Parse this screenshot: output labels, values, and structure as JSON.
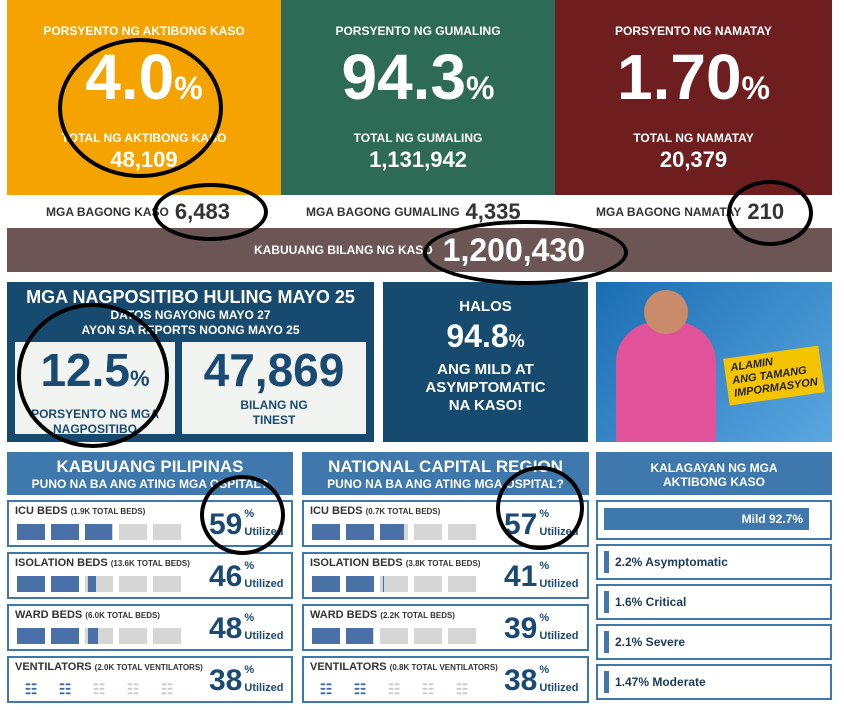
{
  "top": [
    {
      "label": "PORSYENTO NG AKTIBONG KASO",
      "value": "4.0",
      "unit": "%",
      "sub": "TOTAL NG AKTIBONG KASO",
      "count": "48,109",
      "color": "#f5a300"
    },
    {
      "label": "PORSYENTO NG GUMALING",
      "value": "94.3",
      "unit": "%",
      "sub": "TOTAL NG GUMALING",
      "count": "1,131,942",
      "color": "#2e6b57"
    },
    {
      "label": "PORSYENTO NG NAMATAY",
      "value": "1.70",
      "unit": "%",
      "sub": "TOTAL NG NAMATAY",
      "count": "20,379",
      "color": "#6e1e1e"
    }
  ],
  "new": [
    {
      "label": "MGA BAGONG KASO",
      "value": "6,483"
    },
    {
      "label": "MGA BAGONG GUMALING",
      "value": "4,335"
    },
    {
      "label": "MGA BAGONG NAMATAY",
      "value": "210"
    }
  ],
  "total": {
    "label": "KABUUANG BILANG NG KASO",
    "value": "1,200,430"
  },
  "positivity": {
    "title": "MGA NAGPOSITIBO HULING MAYO 25",
    "line1": "DATOS NGAYONG MAYO 27",
    "line2": "AYON SA REPORTS NOONG MAYO 25",
    "rate": "12.5",
    "unit": "%",
    "rate_l1": "PORSYENTO NG MGA",
    "rate_l2": "NAGPOSITIBO",
    "tested": "47,869",
    "tested_l1": "BILANG NG",
    "tested_l2": "TINEST"
  },
  "halos": {
    "l1": "HALOS",
    "value": "94.8",
    "unit": "%",
    "l2": "ANG MILD AT",
    "l3": "ASYMPTOMATIC",
    "l4": "NA KASO!"
  },
  "promo": {
    "l1": "ALAMIN",
    "l2": "ANG TAMANG",
    "l3": "IMPORMASYON"
  },
  "util_unit": "%",
  "util_label": "Utilized",
  "regions": [
    {
      "title": "KABUUANG PILIPINAS",
      "subtitle": "PUNO NA BA ANG ATING MGA OSPITAL?",
      "rows": [
        {
          "name": "ICU BEDS",
          "total": "(1.9K TOTAL BEDS)",
          "pct": 59,
          "pct_text": "59"
        },
        {
          "name": "ISOLATION BEDS",
          "total": "(13.6K TOTAL BEDS)",
          "pct": 46,
          "pct_text": "46"
        },
        {
          "name": "WARD BEDS",
          "total": "(6.0K TOTAL BEDS)",
          "pct": 48,
          "pct_text": "48"
        },
        {
          "name": "VENTILATORS",
          "total": "(2.0K TOTAL VENTILATORS)",
          "pct": 38,
          "pct_text": "38",
          "vent": true
        }
      ]
    },
    {
      "title": "NATIONAL CAPITAL REGION",
      "subtitle": "PUNO NA BA ANG ATING MGA OSPITAL?",
      "rows": [
        {
          "name": "ICU BEDS",
          "total": "(0.7K TOTAL BEDS)",
          "pct": 57,
          "pct_text": "57"
        },
        {
          "name": "ISOLATION BEDS",
          "total": "(3.8K TOTAL BEDS)",
          "pct": 41,
          "pct_text": "41"
        },
        {
          "name": "WARD BEDS",
          "total": "(2.2K TOTAL BEDS)",
          "pct": 39,
          "pct_text": "39"
        },
        {
          "name": "VENTILATORS",
          "total": "(0.8K TOTAL VENTILATORS)",
          "pct": 38,
          "pct_text": "38",
          "vent": true
        }
      ]
    }
  ],
  "status": {
    "title1": "KALAGAYAN NG MGA",
    "title2": "AKTIBONG KASO",
    "mild": "Mild 92.7%",
    "mild_pct": 92.7,
    "items": [
      "2.2% Asymptomatic",
      "1.6% Critical",
      "2.1% Severe",
      "1.47% Moderate"
    ]
  }
}
